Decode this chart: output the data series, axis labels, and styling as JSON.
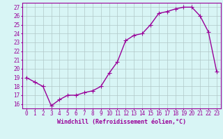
{
  "x": [
    0,
    1,
    2,
    3,
    4,
    5,
    6,
    7,
    8,
    9,
    10,
    11,
    12,
    13,
    14,
    15,
    16,
    17,
    18,
    19,
    20,
    21,
    22,
    23
  ],
  "y": [
    19.0,
    18.5,
    18.0,
    15.8,
    16.5,
    17.0,
    17.0,
    17.3,
    17.5,
    18.0,
    19.5,
    20.8,
    23.2,
    23.8,
    24.0,
    25.0,
    26.3,
    26.5,
    26.8,
    27.0,
    27.0,
    26.0,
    24.2,
    19.7
  ],
  "line_color": "#990099",
  "marker": "+",
  "markersize": 4,
  "linewidth": 1.0,
  "bg_color": "#d8f5f5",
  "grid_color": "#b0c8c8",
  "xlabel": "Windchill (Refroidissement éolien,°C)",
  "xlabel_fontsize": 6,
  "ylabel_ticks": [
    16,
    17,
    18,
    19,
    20,
    21,
    22,
    23,
    24,
    25,
    26,
    27
  ],
  "xlim": [
    -0.5,
    23.5
  ],
  "ylim": [
    15.5,
    27.5
  ],
  "tick_fontsize": 5.5,
  "title_color": "#990099"
}
